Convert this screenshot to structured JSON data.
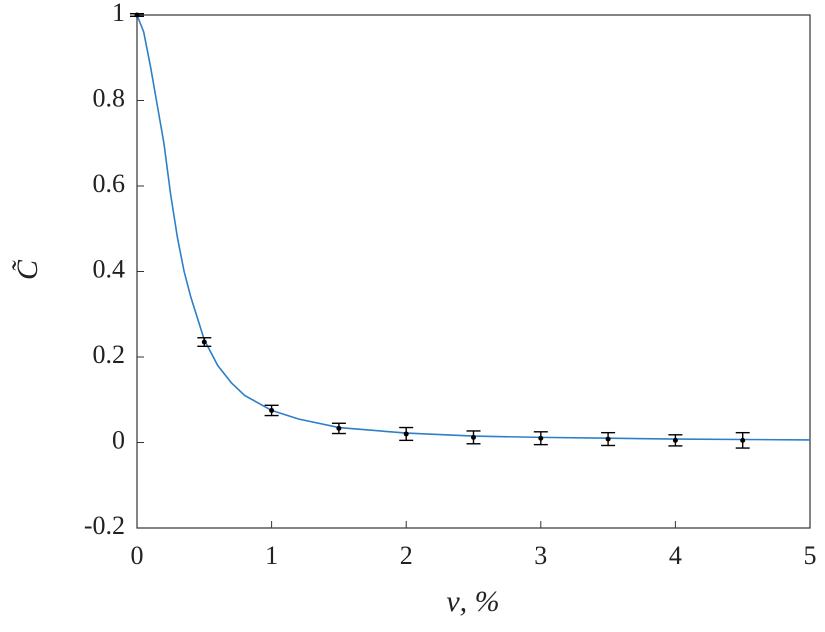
{
  "chart_data": {
    "type": "line",
    "xlabel": "ν, %",
    "ylabel": "C̃",
    "xlim": [
      0,
      5
    ],
    "ylim": [
      -0.2,
      1
    ],
    "xticks": [
      0,
      1,
      2,
      3,
      4,
      5
    ],
    "yticks": [
      -0.2,
      0,
      0.2,
      0.4,
      0.6,
      0.8,
      1
    ],
    "curve": {
      "color": "#2e7fc8",
      "x": [
        0,
        0.05,
        0.1,
        0.15,
        0.2,
        0.25,
        0.3,
        0.35,
        0.4,
        0.5,
        0.6,
        0.7,
        0.8,
        1,
        1.2,
        1.5,
        2,
        2.5,
        3,
        3.5,
        4,
        4.5,
        5
      ],
      "values": [
        1,
        0.96,
        0.88,
        0.79,
        0.7,
        0.58,
        0.48,
        0.4,
        0.34,
        0.24,
        0.18,
        0.14,
        0.11,
        0.075,
        0.055,
        0.035,
        0.022,
        0.015,
        0.012,
        0.01,
        0.008,
        0.007,
        0.006
      ]
    },
    "points": {
      "color": "#000000",
      "x": [
        0,
        0.5,
        1,
        1.5,
        2,
        2.5,
        3,
        3.5,
        4,
        4.5
      ],
      "values": [
        1,
        0.235,
        0.075,
        0.033,
        0.02,
        0.012,
        0.01,
        0.008,
        0.005,
        0.005
      ],
      "errors": [
        0.003,
        0.01,
        0.012,
        0.012,
        0.015,
        0.015,
        0.015,
        0.015,
        0.013,
        0.018
      ]
    }
  }
}
